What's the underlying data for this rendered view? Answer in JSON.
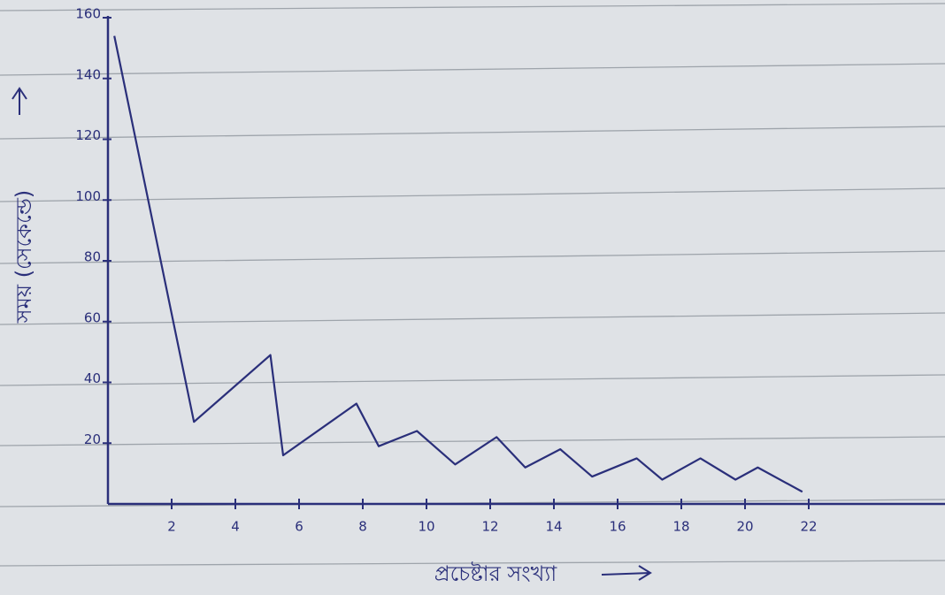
{
  "chart_data": {
    "type": "line",
    "x_label": "প্রচেষ্টার সংখ্যা",
    "y_label": "সময় (সেকেন্ডে)",
    "x": [
      0.2,
      2.7,
      5.1,
      5.5,
      7.8,
      8.5,
      9.7,
      10.9,
      12.2,
      13.1,
      14.2,
      15.2,
      16.6,
      17.4,
      18.6,
      19.7,
      20.4,
      21.8
    ],
    "series": [
      {
        "color": "#2a2f7a",
        "values": [
          154,
          27,
          49,
          16,
          33,
          19,
          24,
          13,
          22,
          12,
          18,
          9,
          15,
          8,
          15,
          8,
          12,
          4
        ]
      }
    ],
    "xlim": [
      0,
      26
    ],
    "ylim": [
      0,
      160
    ],
    "xticks": [
      2,
      4,
      6,
      8,
      10,
      12,
      14,
      16,
      18,
      20,
      22
    ],
    "yticks": [
      20,
      40,
      60,
      80,
      100,
      120,
      140,
      160
    ]
  }
}
